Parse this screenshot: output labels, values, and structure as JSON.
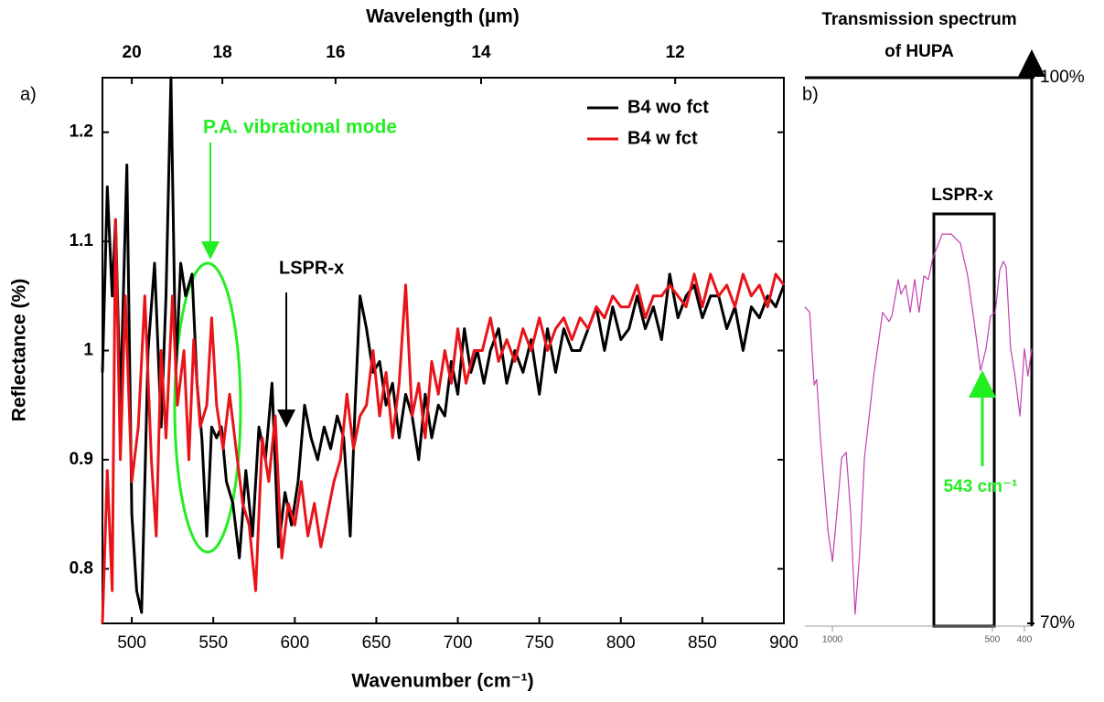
{
  "chart_data": [
    {
      "type": "line",
      "panel_label": "a)",
      "xlabel": "Wavenumber (cm⁻¹)",
      "ylabel": "Reflectance (%)",
      "x2label": "Wavelength (µm)",
      "xlim": [
        482,
        900
      ],
      "ylim": [
        0.75,
        1.25
      ],
      "xticks": [
        500,
        550,
        600,
        650,
        700,
        750,
        800,
        850,
        900
      ],
      "yticks": [
        0.8,
        0.9,
        1,
        1.1,
        1.2
      ],
      "x2ticks": [
        20,
        18,
        16,
        14,
        12
      ],
      "legend": "upper right",
      "annotations": [
        "P.A. vibrational mode",
        "LSPR-x"
      ],
      "series": [
        {
          "name": "B4 wo fct",
          "color": "#000000",
          "x": [
            482,
            485,
            488,
            490,
            493,
            497,
            500,
            503,
            506,
            510,
            514,
            518,
            521,
            524,
            527,
            530,
            533,
            537,
            540,
            543,
            546,
            549,
            552,
            555,
            558,
            562,
            566,
            570,
            574,
            578,
            582,
            586,
            590,
            594,
            598,
            602,
            606,
            610,
            614,
            618,
            622,
            626,
            630,
            634,
            637,
            640,
            644,
            648,
            652,
            656,
            660,
            664,
            668,
            672,
            676,
            680,
            684,
            688,
            692,
            696,
            700,
            704,
            708,
            712,
            716,
            720,
            725,
            730,
            735,
            740,
            745,
            750,
            755,
            760,
            765,
            770,
            775,
            780,
            785,
            790,
            795,
            800,
            805,
            810,
            815,
            820,
            825,
            830,
            835,
            840,
            845,
            850,
            855,
            860,
            865,
            870,
            875,
            880,
            885,
            890,
            895,
            900
          ],
          "values": [
            0.98,
            1.15,
            1.05,
            1.12,
            0.95,
            1.17,
            0.85,
            0.78,
            0.76,
            1.0,
            1.08,
            0.93,
            1.05,
            1.25,
            0.98,
            1.08,
            1.05,
            1.07,
            0.97,
            0.92,
            0.83,
            0.93,
            0.92,
            0.93,
            0.88,
            0.86,
            0.81,
            0.89,
            0.83,
            0.93,
            0.9,
            0.97,
            0.82,
            0.87,
            0.84,
            0.88,
            0.95,
            0.92,
            0.9,
            0.93,
            0.91,
            0.94,
            0.92,
            0.83,
            0.95,
            1.05,
            1.02,
            0.98,
            0.99,
            0.95,
            0.97,
            0.92,
            0.96,
            0.94,
            0.9,
            0.96,
            0.92,
            0.95,
            0.94,
            0.99,
            0.96,
            1.02,
            0.98,
            1.0,
            0.97,
            1.0,
            1.02,
            0.97,
            1.0,
            0.98,
            1.01,
            0.96,
            1.02,
            0.98,
            1.02,
            1.0,
            1.0,
            1.02,
            1.04,
            1.0,
            1.04,
            1.01,
            1.02,
            1.05,
            1.02,
            1.04,
            1.01,
            1.07,
            1.03,
            1.05,
            1.06,
            1.03,
            1.05,
            1.05,
            1.02,
            1.04,
            1.0,
            1.04,
            1.03,
            1.05,
            1.04,
            1.06
          ]
        },
        {
          "name": "B4 w fct",
          "color": "#e8141a",
          "x": [
            482,
            485,
            488,
            490,
            493,
            496,
            500,
            504,
            508,
            512,
            515,
            518,
            521,
            525,
            528,
            532,
            535,
            538,
            542,
            546,
            549,
            552,
            556,
            560,
            564,
            568,
            572,
            576,
            580,
            584,
            588,
            592,
            596,
            600,
            604,
            608,
            612,
            616,
            620,
            624,
            628,
            632,
            636,
            640,
            644,
            648,
            652,
            656,
            660,
            664,
            668,
            672,
            676,
            680,
            684,
            688,
            692,
            696,
            700,
            705,
            710,
            715,
            720,
            725,
            730,
            735,
            740,
            745,
            750,
            755,
            760,
            765,
            770,
            775,
            780,
            785,
            790,
            795,
            800,
            805,
            810,
            815,
            820,
            825,
            830,
            835,
            840,
            845,
            850,
            855,
            860,
            865,
            870,
            875,
            880,
            885,
            890,
            895,
            900
          ],
          "values": [
            0.75,
            0.89,
            0.78,
            1.12,
            0.9,
            1.05,
            0.88,
            0.93,
            1.05,
            0.9,
            0.83,
            1.0,
            0.92,
            1.05,
            0.95,
            1.0,
            0.9,
            1.01,
            0.93,
            0.95,
            1.03,
            0.95,
            0.91,
            0.96,
            0.91,
            0.86,
            0.84,
            0.78,
            0.92,
            0.88,
            0.94,
            0.81,
            0.86,
            0.84,
            0.88,
            0.83,
            0.86,
            0.82,
            0.85,
            0.88,
            0.9,
            0.96,
            0.91,
            0.94,
            0.95,
            1.0,
            0.94,
            0.98,
            0.92,
            0.97,
            1.06,
            0.94,
            0.97,
            0.92,
            0.99,
            0.96,
            1.0,
            0.97,
            1.02,
            0.97,
            1.0,
            1.0,
            1.03,
            0.99,
            1.01,
            0.99,
            1.02,
            1.0,
            1.03,
            1.0,
            1.02,
            1.03,
            1.01,
            1.03,
            1.02,
            1.04,
            1.03,
            1.05,
            1.04,
            1.04,
            1.06,
            1.03,
            1.05,
            1.05,
            1.06,
            1.05,
            1.04,
            1.07,
            1.04,
            1.07,
            1.05,
            1.06,
            1.04,
            1.07,
            1.05,
            1.06,
            1.04,
            1.07,
            1.06
          ]
        }
      ]
    },
    {
      "type": "line",
      "panel_label": "b)",
      "title": [
        "Transmission spectrum",
        "of HUPA"
      ],
      "xlim": [
        1086,
        377
      ],
      "ylim": [
        70,
        100
      ],
      "xticks": [
        1000,
        500,
        400
      ],
      "yticks": [
        {
          "value": 100,
          "label": "100%"
        },
        {
          "value": 70,
          "label": "70%"
        }
      ],
      "annotations": [
        "LSPR-x",
        "543 cm⁻¹"
      ],
      "series": [
        {
          "color": "#c040b0",
          "x": [
            1086,
            1071,
            1057,
            1049,
            1037,
            1014,
            1000,
            986,
            971,
            957,
            943,
            929,
            914,
            900,
            871,
            843,
            823,
            814,
            794,
            786,
            771,
            757,
            743,
            729,
            714,
            700,
            686,
            657,
            629,
            600,
            577,
            557,
            537,
            520,
            506,
            491,
            477,
            466,
            457,
            443,
            429,
            414,
            400,
            389,
            377
          ],
          "values": [
            87.4,
            87.1,
            83.1,
            83.4,
            80.1,
            75.1,
            73.4,
            76.1,
            79.1,
            79.4,
            76.1,
            70.5,
            74.1,
            79.1,
            83.6,
            87.1,
            86.6,
            86.9,
            88.9,
            88.1,
            88.6,
            87.1,
            88.9,
            87.1,
            89.1,
            88.9,
            90.1,
            91.4,
            91.4,
            90.9,
            89.1,
            86.6,
            83.9,
            85.1,
            86.9,
            87.1,
            89.4,
            89.9,
            89.6,
            85.1,
            83.6,
            81.4,
            85.1,
            83.6,
            85.1
          ]
        }
      ]
    }
  ]
}
